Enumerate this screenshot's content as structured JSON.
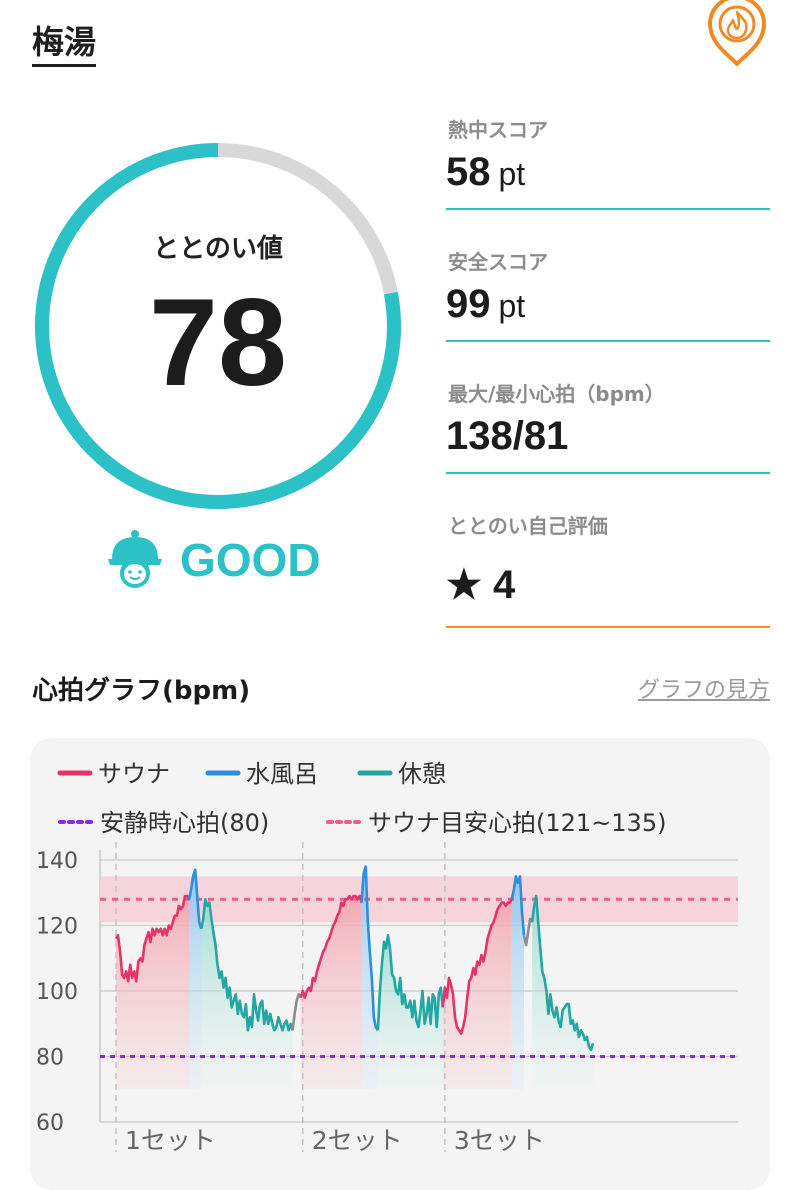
{
  "header": {
    "title": "梅湯",
    "badge_icon": "fire-icon",
    "badge_color": "#f08a24"
  },
  "score": {
    "label": "ととのい値",
    "value": "78",
    "fraction": 0.78,
    "ring_color": "#2cc1c6",
    "track_color": "#d8d8d8"
  },
  "grade": {
    "icon": "sauna-hat-face-icon",
    "text": "GOOD",
    "color": "#2cc1c6"
  },
  "metrics": [
    {
      "label": "熱中スコア",
      "value": "58",
      "unit": "pt"
    },
    {
      "label": "安全スコア",
      "value": "99",
      "unit": "pt"
    },
    {
      "label": "最大/最小心拍（bpm）",
      "value": "138/81",
      "unit": ""
    },
    {
      "label": "ととのい自己評価",
      "value": "★ 4",
      "unit": ""
    }
  ],
  "graph_section": {
    "title": "心拍グラフ(bpm)",
    "guide_link": "グラフの見方"
  },
  "chart_data": {
    "type": "line",
    "legend": [
      {
        "name": "サウナ",
        "color": "#e8336a",
        "style": "solid"
      },
      {
        "name": "水風呂",
        "color": "#2b8ee0",
        "style": "solid"
      },
      {
        "name": "休憩",
        "color": "#22a7a3",
        "style": "solid"
      }
    ],
    "reference_legend": [
      {
        "name": "安静時心拍(80)",
        "color": "#8a2be2",
        "style": "dotted"
      },
      {
        "name": "サウナ目安心拍(121~135)",
        "color": "#ee5f88",
        "style": "dotted"
      }
    ],
    "ylim": [
      60,
      140
    ],
    "yticks": [
      "140",
      "120",
      "100",
      "80",
      "60"
    ],
    "ytick_values": [
      140,
      120,
      100,
      80,
      60
    ],
    "set_labels": [
      "1セット",
      "2セット",
      "3セット"
    ],
    "resting_hr": 80,
    "target_band": [
      121,
      135
    ],
    "target_line": 128,
    "segments": [
      {
        "phase": "sauna",
        "values": [
          116,
          117,
          112,
          105,
          104,
          106,
          103,
          108,
          104,
          106,
          103,
          109,
          110,
          109,
          114,
          116,
          118,
          115,
          119,
          117,
          119,
          118,
          119,
          117,
          119,
          117,
          120,
          119,
          121,
          123,
          123,
          126,
          125,
          126,
          129,
          129,
          128
        ]
      },
      {
        "phase": "water",
        "values": [
          131,
          135,
          137,
          129,
          121,
          119
        ]
      },
      {
        "phase": "rest",
        "values": [
          122,
          128,
          126,
          127,
          122,
          118,
          114,
          108,
          104,
          106,
          101,
          104,
          98,
          101,
          95,
          97,
          99,
          93,
          97,
          93,
          92,
          96,
          88,
          92,
          89,
          99,
          94,
          91,
          96,
          97,
          90,
          94,
          90,
          93,
          90,
          88,
          89,
          92,
          90,
          88,
          90,
          91,
          88,
          90,
          88
        ]
      },
      {
        "phase": "gap",
        "values": [
          93,
          97,
          99,
          98
        ]
      },
      {
        "phase": "sauna",
        "values": [
          100,
          98,
          100,
          101,
          100,
          104,
          103,
          106,
          108,
          110,
          112,
          113,
          115,
          116,
          118,
          120,
          121,
          123,
          124,
          127,
          126,
          128,
          128,
          129,
          128,
          129,
          129,
          128,
          129,
          127
        ]
      },
      {
        "phase": "water",
        "values": [
          136,
          138,
          122,
          112,
          104,
          92,
          89,
          88
        ]
      },
      {
        "phase": "rest",
        "values": [
          100,
          108,
          115,
          113,
          117,
          113,
          105,
          104,
          100,
          99,
          104,
          96,
          99,
          95,
          95,
          97,
          92,
          97,
          91,
          89,
          94,
          100,
          90,
          93,
          98,
          90,
          99,
          98,
          89,
          99,
          101,
          95
        ]
      },
      {
        "phase": "sauna",
        "values": [
          101,
          98,
          104,
          102,
          99,
          92,
          89,
          88,
          87,
          89,
          92,
          98,
          103,
          104,
          107,
          105,
          109,
          108,
          111,
          109,
          112,
          116,
          118,
          120,
          121,
          123,
          125,
          126,
          127,
          127,
          126,
          127,
          127,
          128
        ]
      },
      {
        "phase": "water",
        "values": [
          131,
          135,
          133,
          135,
          124,
          117
        ]
      },
      {
        "phase": "gap",
        "values": [
          114,
          118,
          122,
          121
        ]
      },
      {
        "phase": "rest",
        "values": [
          126,
          129,
          121,
          113,
          106,
          104,
          100,
          93,
          99,
          94,
          92,
          95,
          91,
          89,
          94,
          95,
          96,
          96,
          90,
          91,
          88,
          90,
          86,
          88,
          87,
          85,
          86,
          83,
          82,
          84
        ]
      }
    ]
  }
}
